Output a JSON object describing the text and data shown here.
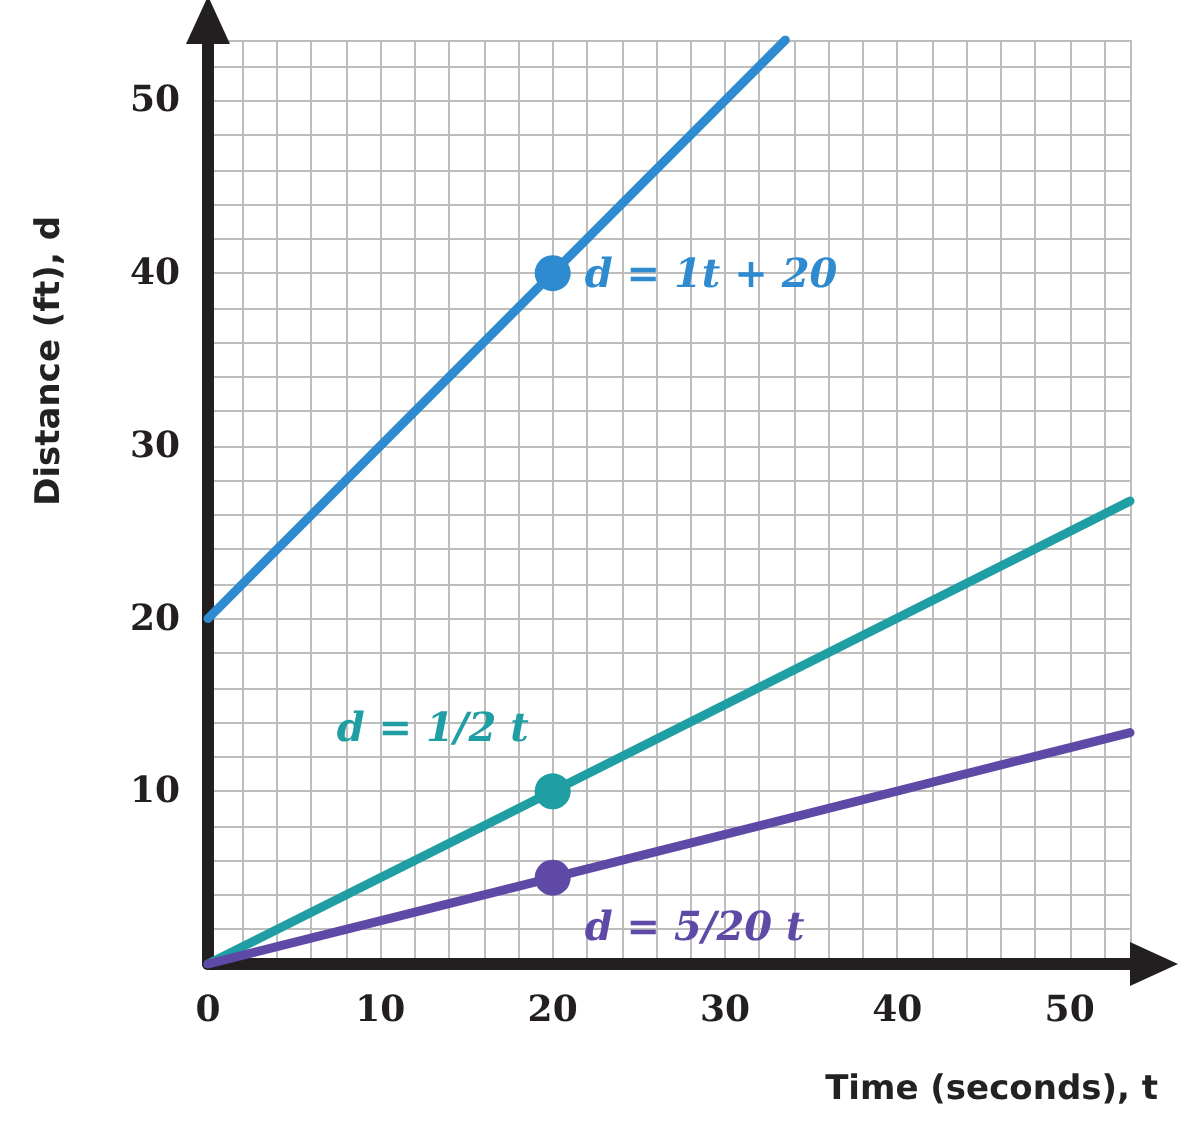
{
  "chart_data": {
    "type": "line",
    "xlabel": "Time (seconds), t",
    "ylabel": "Distance (ft), d",
    "xlim": [
      0,
      53.5
    ],
    "ylim": [
      0,
      53.5
    ],
    "xticks": [
      0,
      {
        "value": 2,
        "label": null
      },
      {
        "value": 4,
        "label": null
      },
      {
        "value": 6,
        "label": null
      },
      {
        "value": 8,
        "label": null
      },
      10,
      {
        "value": 12,
        "label": null
      },
      {
        "value": 14,
        "label": null
      },
      {
        "value": 16,
        "label": null
      },
      {
        "value": 18,
        "label": null
      },
      20,
      {
        "value": 22,
        "label": null
      },
      {
        "value": 24,
        "label": null
      },
      {
        "value": 26,
        "label": null
      },
      {
        "value": 28,
        "label": null
      },
      30,
      {
        "value": 32,
        "label": null
      },
      {
        "value": 34,
        "label": null
      },
      {
        "value": 36,
        "label": null
      },
      {
        "value": 38,
        "label": null
      },
      40,
      {
        "value": 42,
        "label": null
      },
      {
        "value": 44,
        "label": null
      },
      {
        "value": 46,
        "label": null
      },
      {
        "value": 48,
        "label": null
      },
      50,
      {
        "value": 52,
        "label": null
      }
    ],
    "yticks": [
      {
        "value": 0,
        "label": null
      },
      {
        "value": 2,
        "label": null
      },
      {
        "value": 4,
        "label": null
      },
      {
        "value": 6,
        "label": null
      },
      {
        "value": 8,
        "label": null
      },
      10,
      {
        "value": 12,
        "label": null
      },
      {
        "value": 14,
        "label": null
      },
      {
        "value": 16,
        "label": null
      },
      {
        "value": 18,
        "label": null
      },
      20,
      {
        "value": 22,
        "label": null
      },
      {
        "value": 24,
        "label": null
      },
      {
        "value": 26,
        "label": null
      },
      {
        "value": 28,
        "label": null
      },
      30,
      {
        "value": 32,
        "label": null
      },
      {
        "value": 34,
        "label": null
      },
      {
        "value": 36,
        "label": null
      },
      {
        "value": 38,
        "label": null
      },
      40,
      {
        "value": 42,
        "label": null
      },
      {
        "value": 44,
        "label": null
      },
      {
        "value": 46,
        "label": null
      },
      {
        "value": 48,
        "label": null
      },
      50,
      {
        "value": 52,
        "label": null
      }
    ],
    "grid": true,
    "legend": false,
    "series": [
      {
        "name": "d = 1t + 20",
        "color": "#2e8bcf",
        "x": [
          0,
          20,
          33.5
        ],
        "values": [
          20,
          40,
          53.5
        ]
      },
      {
        "name": "d = 1/2 t",
        "color": "#1f9ea3",
        "x": [
          0,
          20,
          53.5
        ],
        "values": [
          0,
          10,
          26.8
        ]
      },
      {
        "name": "d = 5/20 t",
        "color": "#5e4aa6",
        "x": [
          0,
          20,
          53.5
        ],
        "values": [
          0,
          5,
          13.4
        ]
      },
      {
        "type": "scatter",
        "marker": "circle",
        "color": "#2e8bcf",
        "x": [
          20
        ],
        "values": [
          40
        ]
      },
      {
        "type": "scatter",
        "marker": "circle",
        "color": "#1f9ea3",
        "x": [
          20
        ],
        "values": [
          10
        ]
      },
      {
        "type": "scatter",
        "marker": "circle",
        "color": "#5e4aa6",
        "x": [
          20
        ],
        "values": [
          5
        ]
      }
    ]
  }
}
